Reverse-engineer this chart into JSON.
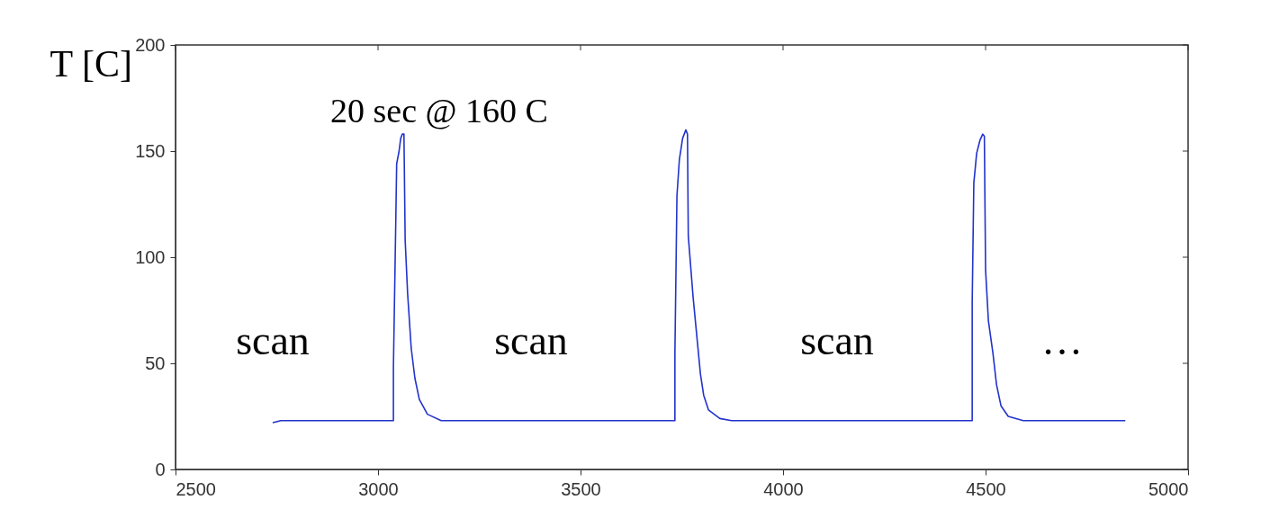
{
  "chart_data": {
    "type": "line",
    "ylabel": "T [C]",
    "annotations": [
      "20 sec @ 160 C",
      "scan",
      "scan",
      "scan",
      "…"
    ],
    "xlim": [
      2500,
      5000
    ],
    "xticks": [
      2500,
      3000,
      3500,
      4000,
      4500,
      5000
    ],
    "ylim": [
      0,
      200
    ],
    "yticks": [
      0,
      50,
      100,
      150,
      200
    ],
    "grid": false,
    "line_style": "solid",
    "series": [
      {
        "color": "#2233cc",
        "x": [
          2740,
          2760,
          2800,
          2850,
          2900,
          3000,
          3038,
          3038,
          3044,
          3046,
          3052,
          3056,
          3060,
          3064,
          3067,
          3073,
          3082,
          3091,
          3102,
          3122,
          3156,
          3300,
          3500,
          3733,
          3733,
          3738,
          3744,
          3752,
          3760,
          3764,
          3766,
          3778,
          3787,
          3796,
          3804,
          3816,
          3844,
          3873,
          4000,
          4200,
          4467,
          4467,
          4471,
          4478,
          4486,
          4493,
          4497,
          4500,
          4507,
          4518,
          4527,
          4538,
          4556,
          4593,
          4700,
          4845
        ],
        "values": [
          22,
          23,
          23,
          23,
          23,
          23,
          23,
          48,
          119,
          144,
          150,
          156,
          158,
          158,
          108,
          83,
          57,
          43,
          33,
          26,
          23,
          23,
          23,
          23,
          55,
          129,
          146,
          156,
          160,
          158,
          110,
          81,
          63,
          45,
          35,
          28,
          24,
          23,
          23,
          23,
          23,
          79,
          135,
          149,
          155,
          158,
          157,
          94,
          70,
          55,
          40,
          30,
          25,
          23,
          23,
          23
        ]
      }
    ]
  }
}
